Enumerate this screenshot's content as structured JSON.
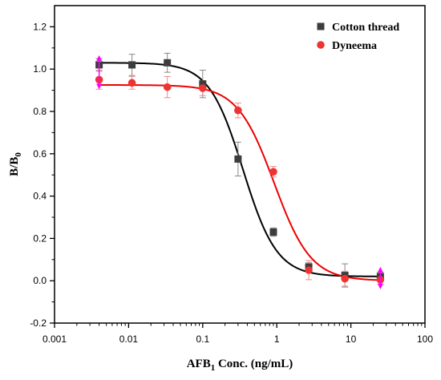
{
  "chart_data": {
    "type": "scatter",
    "title": "",
    "xlabel": {
      "main": "AFB",
      "sub": "1",
      "rest": " Conc. (ng/mL)"
    },
    "ylabel": {
      "main": "B/B",
      "sub": "0"
    },
    "xscale": "log",
    "xlim": [
      0.001,
      100
    ],
    "ylim": [
      -0.2,
      1.3
    ],
    "xticks": [
      0.001,
      0.01,
      0.1,
      1,
      10,
      100
    ],
    "xtick_labels": [
      "0.001",
      "0.01",
      "0.1",
      "1",
      "10",
      "100"
    ],
    "yticks": [
      -0.2,
      0.0,
      0.2,
      0.4,
      0.6,
      0.8,
      1.0,
      1.2
    ],
    "ytick_labels": [
      "-0.2",
      "0.0",
      "0.2",
      "0.4",
      "0.6",
      "0.8",
      "1.0",
      "1.2"
    ],
    "grid": false,
    "legend_position": "top-right",
    "series": [
      {
        "name": "Cotton thread",
        "marker": "square",
        "color": "#3d3d3d",
        "line_color": "#000000",
        "x": [
          0.004,
          0.0111,
          0.0333,
          0.1,
          0.3,
          0.9,
          2.7,
          8.3,
          25
        ],
        "y": [
          1.02,
          1.02,
          1.03,
          0.93,
          0.575,
          0.23,
          0.065,
          0.025,
          0.02
        ],
        "err": [
          0.03,
          0.05,
          0.045,
          0.065,
          0.08,
          0.02,
          0.02,
          0.055,
          0.02
        ],
        "fit": {
          "top": 1.03,
          "bottom": 0.02,
          "ic50": 0.35,
          "slope": 1.9
        }
      },
      {
        "name": "Dyneema",
        "marker": "circle",
        "color": "#ee3333",
        "line_color": "#ee0000",
        "x": [
          0.004,
          0.0111,
          0.0333,
          0.1,
          0.3,
          0.9,
          2.7,
          8.3,
          25
        ],
        "y": [
          0.95,
          0.935,
          0.915,
          0.91,
          0.805,
          0.515,
          0.05,
          0.01,
          0.005
        ],
        "err": [
          0.045,
          0.03,
          0.05,
          0.035,
          0.035,
          0.025,
          0.045,
          0.035,
          0.02
        ],
        "fit": {
          "top": 0.925,
          "bottom": 0.0,
          "ic50": 0.92,
          "slope": 1.75
        }
      }
    ],
    "highlight_color": "#ff00ff"
  }
}
